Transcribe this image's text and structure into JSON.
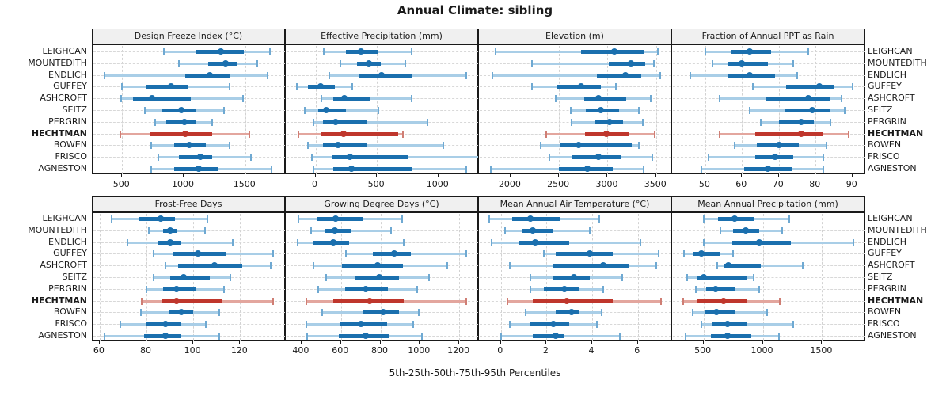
{
  "title": "Annual Climate: sibling",
  "footer": "5th-25th-50th-75th-95th Percentiles",
  "percentile_levels": [
    5,
    25,
    50,
    75,
    95
  ],
  "stations": [
    "LEIGHCAN",
    "MOUNTEDITH",
    "ENDLICH",
    "GUFFEY",
    "ASHCROFT",
    "SEITZ",
    "PERGRIN",
    "HECHTMAN",
    "BOWEN",
    "FRISCO",
    "AGNESTON"
  ],
  "highlight_station": "HECHTMAN",
  "colors": {
    "blue": "#1a6fae",
    "blue_light": "#a9cee7",
    "blue_cap": "#6fa9d2",
    "red": "#bf362c",
    "red_light": "#e3a69e",
    "red_cap": "#cf7e74",
    "grid": "#d2d2d2",
    "strip_bg": "#f0f0f0",
    "border": "#1a1a1a"
  },
  "chart_data": [
    {
      "type": "dotplot-percentile-range",
      "title": "Design Freeze Index (°C)",
      "row": 0,
      "col": 0,
      "xlim": [
        260,
        1830
      ],
      "ticks": [
        500,
        1000,
        1500
      ],
      "series": [
        {
          "name": "LEIGHCAN",
          "values": [
            840,
            1100,
            1300,
            1490,
            1700
          ]
        },
        {
          "name": "MOUNTEDITH",
          "values": [
            960,
            1200,
            1340,
            1430,
            1600
          ]
        },
        {
          "name": "ENDLICH",
          "values": [
            355,
            1010,
            1215,
            1380,
            1680
          ]
        },
        {
          "name": "GUFFEY",
          "values": [
            495,
            690,
            900,
            1030,
            1375
          ]
        },
        {
          "name": "ASHCROFT",
          "values": [
            490,
            585,
            740,
            1055,
            1485
          ]
        },
        {
          "name": "SEITZ",
          "values": [
            685,
            820,
            980,
            1095,
            1325
          ]
        },
        {
          "name": "PERGRIN",
          "values": [
            770,
            860,
            1005,
            1105,
            1230
          ]
        },
        {
          "name": "HECHTMAN",
          "values": [
            485,
            725,
            1010,
            1230,
            1535
          ]
        },
        {
          "name": "BOWEN",
          "values": [
            735,
            925,
            1045,
            1180,
            1375
          ]
        },
        {
          "name": "FRISCO",
          "values": [
            795,
            960,
            1135,
            1230,
            1550
          ]
        },
        {
          "name": "AGNESTON",
          "values": [
            735,
            925,
            1120,
            1275,
            1715
          ]
        }
      ]
    },
    {
      "type": "dotplot-percentile-range",
      "title": "Effective Precipitation (mm)",
      "row": 0,
      "col": 1,
      "xlim": [
        -242,
        1330
      ],
      "ticks": [
        0,
        500,
        1000
      ],
      "series": [
        {
          "name": "LEIGHCAN",
          "values": [
            70,
            250,
            370,
            510,
            780
          ]
        },
        {
          "name": "MOUNTEDITH",
          "values": [
            200,
            340,
            435,
            530,
            730
          ]
        },
        {
          "name": "ENDLICH",
          "values": [
            110,
            350,
            540,
            780,
            1230
          ]
        },
        {
          "name": "GUFFEY",
          "values": [
            -150,
            -60,
            40,
            155,
            300
          ]
        },
        {
          "name": "ASHCROFT",
          "values": [
            50,
            145,
            235,
            445,
            780
          ]
        },
        {
          "name": "SEITZ",
          "values": [
            -90,
            25,
            85,
            250,
            515
          ]
        },
        {
          "name": "PERGRIN",
          "values": [
            -15,
            60,
            165,
            415,
            910
          ]
        },
        {
          "name": "HECHTMAN",
          "values": [
            -140,
            45,
            230,
            675,
            710
          ]
        },
        {
          "name": "BOWEN",
          "values": [
            -60,
            60,
            185,
            415,
            1040
          ]
        },
        {
          "name": "FRISCO",
          "values": [
            -30,
            130,
            280,
            750,
            1350
          ]
        },
        {
          "name": "AGNESTON",
          "values": [
            -15,
            145,
            290,
            780,
            1230
          ]
        }
      ]
    },
    {
      "type": "dotplot-percentile-range",
      "title": "Elevation (m)",
      "row": 0,
      "col": 2,
      "xlim": [
        1675,
        3665
      ],
      "ticks": [
        2000,
        2500,
        3000,
        3500
      ],
      "series": [
        {
          "name": "LEIGHCAN",
          "values": [
            1850,
            2730,
            3070,
            3375,
            3515
          ]
        },
        {
          "name": "MOUNTEDITH",
          "values": [
            2220,
            3010,
            3240,
            3390,
            3475
          ]
        },
        {
          "name": "ENDLICH",
          "values": [
            1815,
            2890,
            3185,
            3350,
            3540
          ]
        },
        {
          "name": "GUFFEY",
          "values": [
            2225,
            2480,
            2725,
            2930,
            3090
          ]
        },
        {
          "name": "ASHCROFT",
          "values": [
            2470,
            2760,
            2910,
            3190,
            3445
          ]
        },
        {
          "name": "SEITZ",
          "values": [
            2620,
            2780,
            2935,
            3120,
            3325
          ]
        },
        {
          "name": "PERGRIN",
          "values": [
            2630,
            2875,
            3020,
            3160,
            3365
          ]
        },
        {
          "name": "HECHTMAN",
          "values": [
            2370,
            2765,
            2990,
            3215,
            3485
          ]
        },
        {
          "name": "BOWEN",
          "values": [
            2315,
            2510,
            2700,
            3250,
            3320
          ]
        },
        {
          "name": "FRISCO",
          "values": [
            2400,
            2630,
            2910,
            3145,
            3460
          ]
        },
        {
          "name": "AGNESTON",
          "values": [
            1795,
            2495,
            2795,
            3050,
            3375
          ]
        }
      ]
    },
    {
      "type": "dotplot-percentile-range",
      "title": "Fraction of Annual PPT as Rain",
      "row": 0,
      "col": 3,
      "xlim": [
        41,
        93.5
      ],
      "ticks": [
        50,
        60,
        70,
        80,
        90
      ],
      "series": [
        {
          "name": "LEIGHCAN",
          "values": [
            50,
            57,
            62,
            68,
            78
          ]
        },
        {
          "name": "MOUNTEDITH",
          "values": [
            52,
            56,
            60,
            67,
            74
          ]
        },
        {
          "name": "ENDLICH",
          "values": [
            46,
            56,
            62,
            69,
            75
          ]
        },
        {
          "name": "GUFFEY",
          "values": [
            63,
            72,
            81,
            85,
            90
          ]
        },
        {
          "name": "ASHCROFT",
          "values": [
            54,
            66.5,
            78,
            84,
            87
          ]
        },
        {
          "name": "SEITZ",
          "values": [
            62,
            71.5,
            79,
            84,
            88
          ]
        },
        {
          "name": "PERGRIN",
          "values": [
            65,
            70,
            76,
            79.5,
            84
          ]
        },
        {
          "name": "HECHTMAN",
          "values": [
            54,
            63.5,
            76,
            82,
            89
          ]
        },
        {
          "name": "BOWEN",
          "values": [
            58,
            64,
            70,
            75.5,
            83
          ]
        },
        {
          "name": "FRISCO",
          "values": [
            51,
            63.5,
            69,
            74,
            82
          ]
        },
        {
          "name": "AGNESTON",
          "values": [
            49,
            60.5,
            67,
            73.5,
            82
          ]
        }
      ]
    },
    {
      "type": "dotplot-percentile-range",
      "title": "Frost-Free Days",
      "row": 1,
      "col": 0,
      "xlim": [
        57,
        139.5
      ],
      "ticks": [
        60,
        80,
        100,
        120
      ],
      "series": [
        {
          "name": "LEIGHCAN",
          "values": [
            65,
            76.5,
            86,
            92,
            106
          ]
        },
        {
          "name": "MOUNTEDITH",
          "values": [
            81,
            87,
            90,
            93,
            105
          ]
        },
        {
          "name": "ENDLICH",
          "values": [
            72,
            85,
            90,
            95,
            117
          ]
        },
        {
          "name": "GUFFEY",
          "values": [
            83,
            91,
            102,
            114,
            134
          ]
        },
        {
          "name": "ASHCROFT",
          "values": [
            88,
            93.5,
            109,
            121,
            133
          ]
        },
        {
          "name": "SEITZ",
          "values": [
            83,
            90,
            96,
            107,
            116
          ]
        },
        {
          "name": "PERGRIN",
          "values": [
            80,
            87,
            93,
            101,
            113
          ]
        },
        {
          "name": "HECHTMAN",
          "values": [
            78,
            86.5,
            93,
            112,
            134
          ]
        },
        {
          "name": "BOWEN",
          "values": [
            77.5,
            89.5,
            95,
            100,
            111
          ]
        },
        {
          "name": "FRISCO",
          "values": [
            69,
            80,
            88,
            94.5,
            105.5
          ]
        },
        {
          "name": "AGNESTON",
          "values": [
            62,
            79,
            88,
            95,
            111
          ]
        }
      ]
    },
    {
      "type": "dotplot-percentile-range",
      "title": "Growing Degree Days (°C)",
      "row": 1,
      "col": 1,
      "xlim": [
        320,
        1300
      ],
      "ticks": [
        400,
        600,
        800,
        1000,
        1200
      ],
      "series": [
        {
          "name": "LEIGHCAN",
          "values": [
            385,
            475,
            575,
            715,
            910
          ]
        },
        {
          "name": "MOUNTEDITH",
          "values": [
            450,
            515,
            570,
            655,
            855
          ]
        },
        {
          "name": "ENDLICH",
          "values": [
            380,
            455,
            560,
            640,
            920
          ]
        },
        {
          "name": "GUFFEY",
          "values": [
            625,
            760,
            870,
            955,
            1235
          ]
        },
        {
          "name": "ASHCROFT",
          "values": [
            460,
            605,
            785,
            915,
            1140
          ]
        },
        {
          "name": "SEITZ",
          "values": [
            525,
            675,
            795,
            895,
            1045
          ]
        },
        {
          "name": "PERGRIN",
          "values": [
            485,
            620,
            725,
            840,
            985
          ]
        },
        {
          "name": "HECHTMAN",
          "values": [
            425,
            560,
            745,
            920,
            1235
          ]
        },
        {
          "name": "BOWEN",
          "values": [
            505,
            715,
            815,
            895,
            995
          ]
        },
        {
          "name": "FRISCO",
          "values": [
            425,
            595,
            700,
            835,
            965
          ]
        },
        {
          "name": "AGNESTON",
          "values": [
            430,
            590,
            725,
            845,
            1010
          ]
        }
      ]
    },
    {
      "type": "dotplot-percentile-range",
      "title": "Mean Annual Air Temperature (°C)",
      "row": 1,
      "col": 2,
      "xlim": [
        -0.96,
        7.5
      ],
      "ticks": [
        0,
        2,
        4,
        6
      ],
      "series": [
        {
          "name": "LEIGHCAN",
          "values": [
            -0.5,
            0.5,
            1.3,
            2.6,
            4.3
          ]
        },
        {
          "name": "MOUNTEDITH",
          "values": [
            0.2,
            0.9,
            1.4,
            2.3,
            3.9
          ]
        },
        {
          "name": "ENDLICH",
          "values": [
            -0.4,
            0.8,
            1.5,
            3.0,
            6.1
          ]
        },
        {
          "name": "GUFFEY",
          "values": [
            1.9,
            2.4,
            3.9,
            4.9,
            6.9
          ]
        },
        {
          "name": "ASHCROFT",
          "values": [
            0.4,
            2.3,
            4.5,
            5.6,
            6.8
          ]
        },
        {
          "name": "SEITZ",
          "values": [
            1.3,
            2.3,
            3.2,
            3.9,
            5.3
          ]
        },
        {
          "name": "PERGRIN",
          "values": [
            1.3,
            1.9,
            2.8,
            3.4,
            4.5
          ]
        },
        {
          "name": "HECHTMAN",
          "values": [
            0.3,
            1.4,
            2.9,
            4.9,
            7.0
          ]
        },
        {
          "name": "BOWEN",
          "values": [
            1.1,
            2.4,
            3.1,
            3.4,
            4.4
          ]
        },
        {
          "name": "FRISCO",
          "values": [
            0.4,
            1.3,
            2.3,
            3.0,
            4.2
          ]
        },
        {
          "name": "AGNESTON",
          "values": [
            0.0,
            1.4,
            2.4,
            2.8,
            5.2
          ]
        }
      ]
    },
    {
      "type": "dotplot-percentile-range",
      "title": "Mean Annual Precipitation (mm)",
      "row": 1,
      "col": 3,
      "xlim": [
        235,
        1865
      ],
      "ticks": [
        500,
        1000,
        1500
      ],
      "series": [
        {
          "name": "LEIGHCAN",
          "values": [
            505,
            625,
            765,
            925,
            1225
          ]
        },
        {
          "name": "MOUNTEDITH",
          "values": [
            640,
            750,
            855,
            970,
            1165
          ]
        },
        {
          "name": "ENDLICH",
          "values": [
            505,
            740,
            970,
            1240,
            1765
          ]
        },
        {
          "name": "GUFFEY",
          "values": [
            335,
            415,
            480,
            640,
            750
          ]
        },
        {
          "name": "ASHCROFT",
          "values": [
            615,
            670,
            710,
            980,
            1335
          ]
        },
        {
          "name": "SEITZ",
          "values": [
            360,
            450,
            500,
            870,
            920
          ]
        },
        {
          "name": "PERGRIN",
          "values": [
            435,
            525,
            600,
            770,
            970
          ]
        },
        {
          "name": "HECHTMAN",
          "values": [
            330,
            450,
            670,
            860,
            1145
          ]
        },
        {
          "name": "BOWEN",
          "values": [
            410,
            515,
            610,
            770,
            1035
          ]
        },
        {
          "name": "FRISCO",
          "values": [
            480,
            570,
            700,
            860,
            1255
          ]
        },
        {
          "name": "AGNESTON",
          "values": [
            350,
            560,
            705,
            905,
            1140
          ]
        }
      ]
    }
  ]
}
